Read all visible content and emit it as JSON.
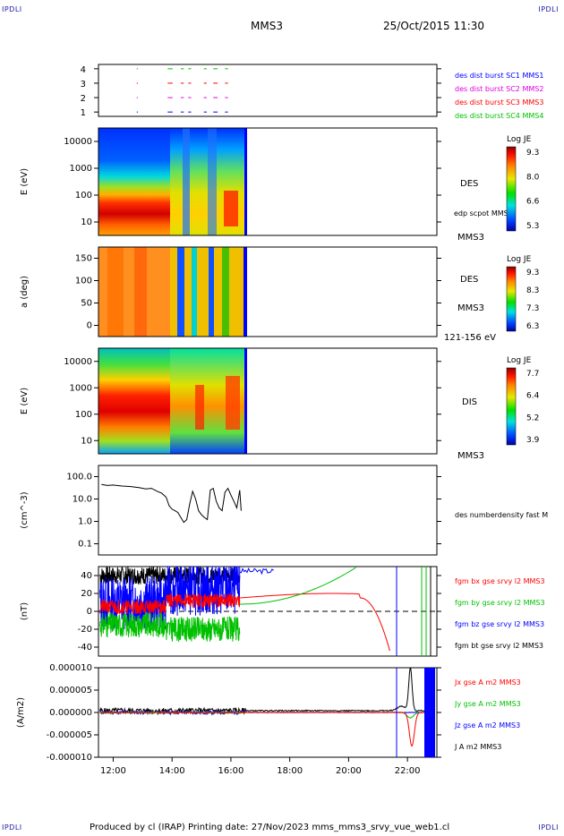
{
  "corner_labels": {
    "top_left": "IPDLI",
    "top_right": "IPDLI",
    "bottom_left": "IPDLI",
    "bottom_right": "IPDLI"
  },
  "header": {
    "spacecraft": "MMS3",
    "date_time": "25/Oct/2015 11:30"
  },
  "footer": {
    "text": "Produced by cl (IRAP)   Printing date: 27/Nov/2023   mms_mms3_srvy_vue_web1.cl"
  },
  "colors": {
    "blue": "#0000ff",
    "red": "#ff0000",
    "green": "#00c000",
    "magenta": "#e000e0",
    "black": "#000000"
  },
  "chart_data": [
    {
      "type": "scatter",
      "name": "burst-indicator",
      "ylim": [
        0.7,
        4.3
      ],
      "ytick_labels": [
        "1",
        "2",
        "3",
        "4"
      ],
      "legend": [
        {
          "label": "des dist burst SC1 MMS1",
          "color": "#0000ff",
          "level": 1
        },
        {
          "label": "des dist burst SC2 MMS2",
          "color": "#e000e0",
          "level": 2
        },
        {
          "label": "des dist burst SC3 MMS3",
          "color": "#ff0000",
          "level": 3
        },
        {
          "label": "des dist burst SC4 MMS4",
          "color": "#00c000",
          "level": 4
        }
      ],
      "segments_hours": [
        [
          12.8,
          12.84
        ],
        [
          13.85,
          14.02
        ],
        [
          14.3,
          14.4
        ],
        [
          14.55,
          14.65
        ],
        [
          15.08,
          15.18
        ],
        [
          15.4,
          15.55
        ],
        [
          15.8,
          15.9
        ]
      ]
    },
    {
      "type": "heatmap",
      "name": "des-energy-spectrogram",
      "ylabel": "E (eV)",
      "ytick_labels": [
        "10",
        "100",
        "1000",
        "10000"
      ],
      "side_labels": [
        "DES",
        "edp scpot MMS3",
        "MMS3"
      ],
      "colorbar": {
        "title": "Log JE",
        "ticks": [
          "9.3",
          "8.0",
          "6.6",
          "5.3"
        ]
      }
    },
    {
      "type": "heatmap",
      "name": "des-pitch-angle",
      "ylabel": "a (deg)",
      "ytick_labels": [
        "0",
        "50",
        "100",
        "150"
      ],
      "side_labels": [
        "DES",
        "MMS3",
        "121-156 eV"
      ],
      "colorbar": {
        "title": "Log JE",
        "ticks": [
          "9.3",
          "8.3",
          "7.3",
          "6.3"
        ]
      }
    },
    {
      "type": "heatmap",
      "name": "dis-energy-spectrogram",
      "ylabel": "E (eV)",
      "ytick_labels": [
        "10",
        "100",
        "1000",
        "10000"
      ],
      "side_labels": [
        "DIS",
        "MMS3"
      ],
      "colorbar": {
        "title": "Log JE",
        "ticks": [
          "7.7",
          "6.4",
          "5.2",
          "3.9"
        ]
      }
    },
    {
      "type": "line",
      "name": "number-density",
      "ylabel": "(cm^-3)",
      "ytick_labels": [
        "0.1",
        "1.0",
        "10.0",
        "100.0"
      ],
      "legend": [
        {
          "label": "des numberdensity fast M",
          "color": "#000000"
        }
      ],
      "x": [
        11.6,
        11.8,
        12.0,
        12.3,
        12.6,
        12.9,
        13.1,
        13.3,
        13.5,
        13.65,
        13.8,
        13.9,
        14.0,
        14.1,
        14.2,
        14.3,
        14.4,
        14.5,
        14.6,
        14.7,
        14.8,
        14.9,
        15.0,
        15.1,
        15.2,
        15.3,
        15.4,
        15.5,
        15.6,
        15.7,
        15.8,
        15.9,
        16.0,
        16.1,
        16.2,
        16.3,
        16.35
      ],
      "y": [
        45,
        40,
        42,
        38,
        36,
        32,
        28,
        30,
        22,
        18,
        12,
        5,
        3.5,
        3,
        2.5,
        1.5,
        0.9,
        1.2,
        6,
        22,
        10,
        3,
        2,
        1.5,
        1.2,
        25,
        30,
        8,
        4,
        3,
        20,
        30,
        15,
        8,
        4,
        25,
        3
      ]
    },
    {
      "type": "line",
      "name": "magnetic-field",
      "ylabel": "(nT)",
      "ytick_labels": [
        "-40",
        "-20",
        "0",
        "20",
        "40"
      ],
      "ylim": [
        -50,
        50
      ],
      "legend": [
        {
          "label": "fgm bx gse srvy l2 MMS3",
          "color": "#ff0000"
        },
        {
          "label": "fgm by gse srvy l2 MMS3",
          "color": "#00c000"
        },
        {
          "label": "fgm bz gse srvy l2 MMS3",
          "color": "#0000ff"
        },
        {
          "label": "fgm bt gse srvy l2 MMS3",
          "color": "#000000"
        }
      ]
    },
    {
      "type": "line",
      "name": "current-density",
      "ylabel": "(A/m2)",
      "ytick_labels": [
        "-0.000010",
        "-0.000005",
        "0.000000",
        "0.000005",
        "0.000010"
      ],
      "ylim": [
        -1e-05,
        1e-05
      ],
      "legend": [
        {
          "label": "Jx gse A m2 MMS3",
          "color": "#ff0000"
        },
        {
          "label": "Jy gse A m2 MMS3",
          "color": "#00c000"
        },
        {
          "label": "Jz gse A m2 MMS3",
          "color": "#0000ff"
        },
        {
          "label": "J A m2 MMS3",
          "color": "#000000"
        }
      ]
    }
  ],
  "time_axis": {
    "xlim": [
      11.5,
      23.0
    ],
    "tick_labels": [
      "12:00",
      "14:00",
      "16:00",
      "18:00",
      "20:00",
      "22:00"
    ]
  }
}
